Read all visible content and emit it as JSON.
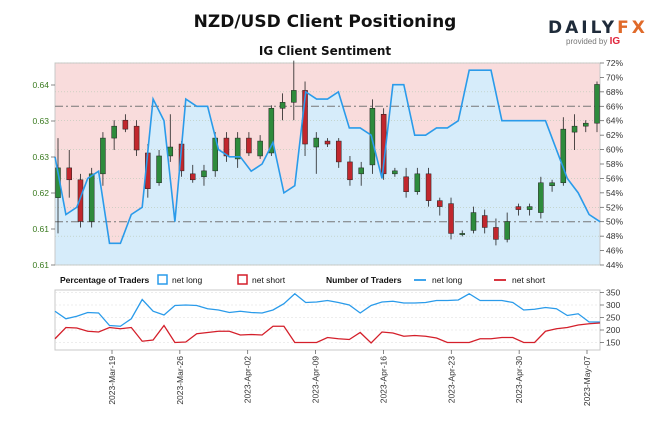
{
  "header": {
    "title": "NZD/USD Client Positioning",
    "subtitle": "IG Client Sentiment",
    "logo_main": "DAILY",
    "logo_fx": "FX",
    "logo_provided": "provided by",
    "logo_ig": "IG"
  },
  "colors": {
    "net_long_line": "#2a9bea",
    "net_short_line": "#d41f2a",
    "bull_candle": "#2e8b3c",
    "bear_candle": "#c1272d",
    "long_fill": "#d6ecfa",
    "short_fill": "#f9dcdc",
    "left_axis_text": "#3a7a1f"
  },
  "chart_data": [
    {
      "type": "candlestick",
      "title": "NZD/USD Client Positioning",
      "subtitle": "IG Client Sentiment",
      "y_left_ticks": [
        "0.64",
        "0.63",
        "0.63",
        "0.62",
        "0.61",
        "0.61"
      ],
      "y_left_range": [
        0.6077,
        0.6416
      ],
      "y_right_ticks": [
        "72%",
        "70%",
        "68%",
        "66%",
        "64%",
        "62%",
        "60%",
        "58%",
        "56%",
        "54%",
        "52%",
        "50%",
        "48%",
        "46%",
        "44%"
      ],
      "y_right_range": [
        44,
        72
      ],
      "reference_lines_percent": [
        66,
        50
      ],
      "candles": [
        [
          0.619,
          0.629,
          0.613,
          0.624
        ],
        [
          0.624,
          0.627,
          0.619,
          0.622
        ],
        [
          0.622,
          0.623,
          0.614,
          0.615
        ],
        [
          0.615,
          0.624,
          0.614,
          0.623
        ],
        [
          0.623,
          0.63,
          0.621,
          0.629
        ],
        [
          0.629,
          0.632,
          0.627,
          0.631
        ],
        [
          0.632,
          0.633,
          0.63,
          0.6305
        ],
        [
          0.631,
          0.632,
          0.626,
          0.627
        ],
        [
          0.6265,
          0.628,
          0.619,
          0.6205
        ],
        [
          0.6215,
          0.627,
          0.621,
          0.626
        ],
        [
          0.626,
          0.633,
          0.625,
          0.6275
        ],
        [
          0.628,
          0.6285,
          0.6225,
          0.6235
        ],
        [
          0.623,
          0.6245,
          0.6215,
          0.622
        ],
        [
          0.6225,
          0.6245,
          0.621,
          0.6235
        ],
        [
          0.6235,
          0.63,
          0.6225,
          0.629
        ],
        [
          0.629,
          0.63,
          0.625,
          0.626
        ],
        [
          0.6255,
          0.63,
          0.624,
          0.629
        ],
        [
          0.629,
          0.63,
          0.626,
          0.6265
        ],
        [
          0.626,
          0.6295,
          0.6255,
          0.6285
        ],
        [
          0.6265,
          0.6345,
          0.626,
          0.634
        ],
        [
          0.634,
          0.6365,
          0.632,
          0.635
        ],
        [
          0.635,
          0.642,
          0.632,
          0.637
        ],
        [
          0.637,
          0.6385,
          0.626,
          0.628
        ],
        [
          0.6275,
          0.63,
          0.623,
          0.629
        ],
        [
          0.6285,
          0.629,
          0.6275,
          0.628
        ],
        [
          0.6285,
          0.629,
          0.624,
          0.625
        ],
        [
          0.625,
          0.626,
          0.621,
          0.622
        ],
        [
          0.623,
          0.625,
          0.621,
          0.624
        ],
        [
          0.6245,
          0.6355,
          0.623,
          0.634
        ],
        [
          0.633,
          0.634,
          0.622,
          0.623
        ],
        [
          0.623,
          0.624,
          0.6225,
          0.6235
        ],
        [
          0.6225,
          0.624,
          0.619,
          0.62
        ],
        [
          0.62,
          0.624,
          0.6195,
          0.623
        ],
        [
          0.623,
          0.624,
          0.6175,
          0.6185
        ],
        [
          0.6185,
          0.619,
          0.616,
          0.6175
        ],
        [
          0.618,
          0.619,
          0.612,
          0.613
        ],
        [
          0.613,
          0.6135,
          0.6125,
          0.613
        ],
        [
          0.6135,
          0.6175,
          0.613,
          0.6165
        ],
        [
          0.616,
          0.617,
          0.613,
          0.614
        ],
        [
          0.614,
          0.6155,
          0.611,
          0.612
        ],
        [
          0.612,
          0.6165,
          0.6115,
          0.615
        ],
        [
          0.6175,
          0.618,
          0.616,
          0.617
        ],
        [
          0.617,
          0.618,
          0.616,
          0.6175
        ],
        [
          0.6165,
          0.6225,
          0.6155,
          0.6215
        ],
        [
          0.621,
          0.622,
          0.62,
          0.6215
        ],
        [
          0.6215,
          0.6325,
          0.621,
          0.6305
        ],
        [
          0.63,
          0.633,
          0.627,
          0.631
        ],
        [
          0.631,
          0.632,
          0.63,
          0.6315
        ],
        [
          0.6315,
          0.6385,
          0.63,
          0.638
        ]
      ],
      "net_long_percent": [
        59,
        51,
        52,
        56,
        57,
        47,
        47,
        51,
        52,
        67,
        64,
        50,
        67,
        66,
        66,
        60,
        59,
        59,
        57,
        58,
        61,
        54,
        55,
        68,
        67,
        67,
        68,
        63,
        63,
        62,
        56,
        69,
        69,
        62,
        62,
        63,
        63,
        64,
        71,
        71,
        71,
        64,
        64,
        64,
        64,
        64,
        60,
        56,
        54,
        51,
        50
      ],
      "legend": [
        "Percentage of Traders",
        "net long",
        "net short",
        "Number of Traders",
        "net long",
        "net short"
      ]
    },
    {
      "type": "line",
      "y_ticks": [
        "350",
        "300",
        "250",
        "200",
        "150"
      ],
      "y_range": [
        120,
        360
      ],
      "x_tick_labels": [
        "2023-Mar-19",
        "2023-Mar-26",
        "2023-Apr-02",
        "2023-Apr-09",
        "2023-Apr-16",
        "2023-Apr-23",
        "2023-Apr-30",
        "2023-May-07"
      ],
      "series": [
        {
          "name": "net long",
          "values": [
            275,
            245,
            255,
            270,
            268,
            218,
            215,
            245,
            322,
            275,
            260,
            298,
            300,
            298,
            285,
            280,
            270,
            275,
            270,
            268,
            280,
            305,
            345,
            310,
            312,
            318,
            310,
            300,
            268,
            298,
            312,
            315,
            308,
            308,
            310,
            318,
            318,
            320,
            345,
            318,
            318,
            318,
            310,
            280,
            283,
            290,
            285,
            258,
            265,
            232,
            232
          ]
        },
        {
          "name": "net short",
          "values": [
            165,
            210,
            208,
            195,
            192,
            210,
            205,
            210,
            155,
            160,
            218,
            150,
            152,
            185,
            190,
            195,
            195,
            180,
            182,
            180,
            215,
            215,
            150,
            150,
            150,
            170,
            165,
            162,
            190,
            148,
            192,
            188,
            175,
            178,
            175,
            168,
            150,
            150,
            150,
            165,
            165,
            170,
            170,
            150,
            150,
            195,
            205,
            210,
            220,
            225,
            228
          ]
        }
      ]
    }
  ]
}
